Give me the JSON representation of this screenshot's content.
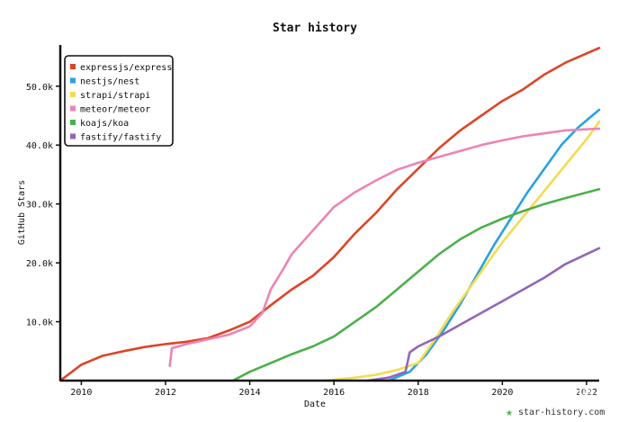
{
  "chart_data": {
    "type": "line",
    "title": "Star history",
    "xlabel": "Date",
    "ylabel": "GitHub Stars",
    "xlim": [
      2009.5,
      2022.3
    ],
    "ylim": [
      0,
      57000
    ],
    "x_ticks": [
      2010,
      2012,
      2014,
      2016,
      2018,
      2020,
      2022
    ],
    "y_ticks": [
      10000,
      20000,
      30000,
      40000,
      50000
    ],
    "y_tick_labels": [
      "10.0k",
      "20.0k",
      "30.0k",
      "40.0k",
      "50.0k"
    ],
    "grid": false,
    "legend_position": "top-left",
    "series": [
      {
        "name": "expressjs/express",
        "color": "#dd4528",
        "points": [
          [
            2009.5,
            0
          ],
          [
            2010,
            2700
          ],
          [
            2010.5,
            4200
          ],
          [
            2011,
            5000
          ],
          [
            2011.5,
            5700
          ],
          [
            2012,
            6200
          ],
          [
            2012.5,
            6600
          ],
          [
            2013,
            7200
          ],
          [
            2013.5,
            8500
          ],
          [
            2014,
            10000
          ],
          [
            2014.5,
            12800
          ],
          [
            2015,
            15500
          ],
          [
            2015.5,
            17800
          ],
          [
            2016,
            21000
          ],
          [
            2016.5,
            25000
          ],
          [
            2017,
            28500
          ],
          [
            2017.5,
            32500
          ],
          [
            2018,
            36000
          ],
          [
            2018.5,
            39500
          ],
          [
            2019,
            42500
          ],
          [
            2019.5,
            45000
          ],
          [
            2020,
            47500
          ],
          [
            2020.5,
            49500
          ],
          [
            2021,
            52000
          ],
          [
            2021.5,
            54000
          ],
          [
            2022.3,
            56500
          ]
        ]
      },
      {
        "name": "nestjs/nest",
        "color": "#28a3dd",
        "points": [
          [
            2017.3,
            0
          ],
          [
            2017.8,
            1500
          ],
          [
            2018.2,
            4500
          ],
          [
            2018.6,
            8500
          ],
          [
            2019,
            13000
          ],
          [
            2019.4,
            18000
          ],
          [
            2019.8,
            23000
          ],
          [
            2020.2,
            27500
          ],
          [
            2020.6,
            32000
          ],
          [
            2021,
            36000
          ],
          [
            2021.4,
            40000
          ],
          [
            2021.8,
            43000
          ],
          [
            2022.3,
            46000
          ]
        ]
      },
      {
        "name": "strapi/strapi",
        "color": "#f3db52",
        "points": [
          [
            2015.8,
            0
          ],
          [
            2016.5,
            500
          ],
          [
            2017,
            1000
          ],
          [
            2017.5,
            1800
          ],
          [
            2018,
            3000
          ],
          [
            2018.4,
            7000
          ],
          [
            2018.8,
            11500
          ],
          [
            2019.2,
            15500
          ],
          [
            2019.6,
            19500
          ],
          [
            2020,
            23500
          ],
          [
            2020.4,
            27000
          ],
          [
            2020.8,
            30500
          ],
          [
            2021.2,
            34000
          ],
          [
            2021.6,
            37500
          ],
          [
            2022,
            41000
          ],
          [
            2022.3,
            44000
          ]
        ]
      },
      {
        "name": "meteor/meteor",
        "color": "#ed84b5",
        "points": [
          [
            2012.1,
            2500
          ],
          [
            2012.15,
            5500
          ],
          [
            2012.5,
            6200
          ],
          [
            2013,
            7000
          ],
          [
            2013.5,
            7800
          ],
          [
            2014,
            9200
          ],
          [
            2014.3,
            11500
          ],
          [
            2014.5,
            15500
          ],
          [
            2014.8,
            19000
          ],
          [
            2015,
            21500
          ],
          [
            2015.5,
            25500
          ],
          [
            2016,
            29500
          ],
          [
            2016.5,
            32000
          ],
          [
            2017,
            34000
          ],
          [
            2017.5,
            35800
          ],
          [
            2018,
            37000
          ],
          [
            2018.5,
            38000
          ],
          [
            2019,
            39000
          ],
          [
            2019.5,
            40000
          ],
          [
            2020,
            40800
          ],
          [
            2020.5,
            41500
          ],
          [
            2021,
            42000
          ],
          [
            2021.5,
            42500
          ],
          [
            2022.3,
            42800
          ]
        ]
      },
      {
        "name": "koajs/koa",
        "color": "#4cb04a",
        "points": [
          [
            2013.6,
            0
          ],
          [
            2014,
            1500
          ],
          [
            2014.5,
            3000
          ],
          [
            2015,
            4500
          ],
          [
            2015.5,
            5800
          ],
          [
            2016,
            7500
          ],
          [
            2016.5,
            10000
          ],
          [
            2017,
            12500
          ],
          [
            2017.5,
            15500
          ],
          [
            2018,
            18500
          ],
          [
            2018.5,
            21500
          ],
          [
            2019,
            24000
          ],
          [
            2019.5,
            26000
          ],
          [
            2020,
            27500
          ],
          [
            2020.5,
            28800
          ],
          [
            2021,
            30000
          ],
          [
            2021.5,
            31000
          ],
          [
            2022.3,
            32500
          ]
        ]
      },
      {
        "name": "fastify/fastify",
        "color": "#9166b8",
        "points": [
          [
            2016.8,
            0
          ],
          [
            2017.3,
            500
          ],
          [
            2017.7,
            1500
          ],
          [
            2017.8,
            4800
          ],
          [
            2018,
            5800
          ],
          [
            2018.5,
            7500
          ],
          [
            2019,
            9500
          ],
          [
            2019.5,
            11500
          ],
          [
            2020,
            13500
          ],
          [
            2020.5,
            15500
          ],
          [
            2021,
            17500
          ],
          [
            2021.5,
            19800
          ],
          [
            2022.3,
            22500
          ]
        ]
      }
    ]
  },
  "footer": {
    "brand": "star-history.com",
    "watermark": "知乎 @知善"
  }
}
